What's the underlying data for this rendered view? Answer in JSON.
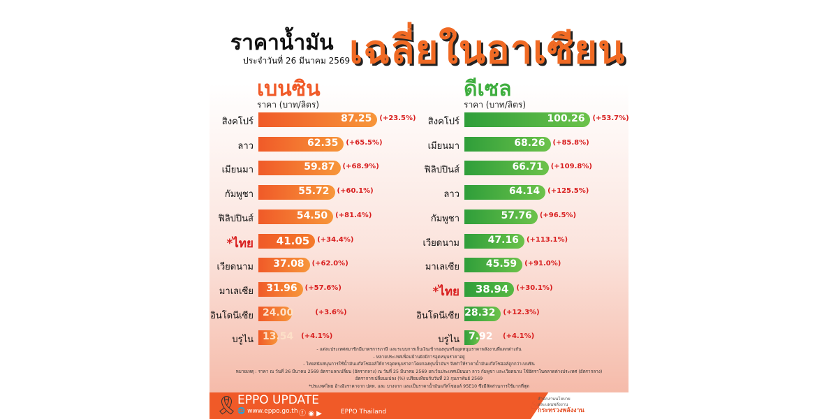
{
  "header": {
    "title_part1": "ราคาน้ำมัน",
    "date": "ประจำวันที่ 26 มีนาคม 2569",
    "title_part2": "เฉลี่ยในอาเซียน"
  },
  "chart_data": [
    {
      "type": "bar",
      "orientation": "horizontal",
      "title": "เบนซิน",
      "ylabel": "ราคา (บาท/ลิตร)",
      "color": "#f05a28",
      "categories": [
        "สิงคโปร์",
        "ลาว",
        "เมียนมา",
        "กัมพูชา",
        "ฟิลิปปินส์",
        "*ไทย",
        "เวียดนาม",
        "มาเลเซีย",
        "อินโดนีเซีย",
        "บรูไน"
      ],
      "values": [
        87.25,
        62.35,
        59.87,
        55.72,
        54.5,
        41.05,
        37.08,
        31.96,
        24.0,
        13.54
      ],
      "value_labels": [
        "87.25",
        "62.35",
        "59.87",
        "55.72",
        "54.50",
        "41.05",
        "37.08",
        "31.96",
        "24.00",
        "13.54"
      ],
      "changes": [
        "(+23.5%)",
        "(+65.5%)",
        "(+68.9%)",
        "(+60.1%)",
        "(+81.4%)",
        "(+34.4%)",
        "(+62.0%)",
        "(+57.6%)",
        "(+3.6%)",
        "(+4.1%)"
      ]
    },
    {
      "type": "bar",
      "orientation": "horizontal",
      "title": "ดีเซล",
      "ylabel": "ราคา (บาท/ลิตร)",
      "color": "#3fae3f",
      "categories": [
        "สิงคโปร์",
        "เมียนมา",
        "ฟิลิปปินส์",
        "ลาว",
        "กัมพูชา",
        "เวียดนาม",
        "มาเลเซีย",
        "*ไทย",
        "อินโดนีเซีย",
        "บรูไน"
      ],
      "values": [
        100.26,
        68.26,
        66.71,
        64.14,
        57.76,
        47.16,
        45.59,
        38.94,
        28.32,
        7.92
      ],
      "value_labels": [
        "100.26",
        "68.26",
        "66.71",
        "64.14",
        "57.76",
        "47.16",
        "45.59",
        "38.94",
        "28.32",
        "7.92"
      ],
      "changes": [
        "(+53.7%)",
        "(+85.8%)",
        "(+109.8%)",
        "(+125.5%)",
        "(+96.5%)",
        "(+113.1%)",
        "(+91.0%)",
        "(+30.1%)",
        "(+12.3%)",
        "(+4.1%)"
      ]
    }
  ],
  "notes": [
    "- แต่ละประเทศสมาชิกมีมาตรการภาษี และระบบการเก็บเงินเข้ากองทุนหรืออุดหนุนราคาพลังงานที่แตกต่างกัน",
    "- หลายประเทศเพื่อนบ้านยังมีการอุดหนุนราคาอยู่",
    "- ไทยสนับสนุนการใช้น้ำมันแก๊สโซฮอล์ให้การอุดหนุนราคาโดยกองทุนน้ำมันฯ จึงทำให้ราคาน้ำมันแก๊สโซฮอล์ถูกกว่าเบนซิน",
    "หมายเหตุ : ราคา ณ วันที่ 26 มีนาคม 2569 อัตราแลกเปลี่ยน (อัตรากลาง) ณ วันที่ 25 มีนาคม 2569 ยกเว้นประเทศเมียนมา ลาว กัมพูชา และเวียดนาม ใช้อัตราในตลาดต่างประเทศ (อัตรากลาง)",
    "อัตราการเปลี่ยนแปลง (%) เปรียบเทียบกับวันที่ 23 กุมภาพันธ์ 2569",
    "*ประเทศไทย อ้างอิงราคาจาก ปตท. และ บางจาก และเป็นราคาน้ำมันแก๊สโซฮอล์ 95E10 ซึ่งมีสัดส่วนการใช้มากที่สุด"
  ],
  "footer": {
    "brand": "EPPO UPDATE",
    "website": "www.eppo.go.th",
    "social_name": "EPPO Thailand",
    "org_line1": "สำนักงานนโยบาย",
    "org_line2": "และแผนพลังงาน",
    "ministry": "กระทรวงพลังงาน",
    "accent": "#f05a28"
  }
}
